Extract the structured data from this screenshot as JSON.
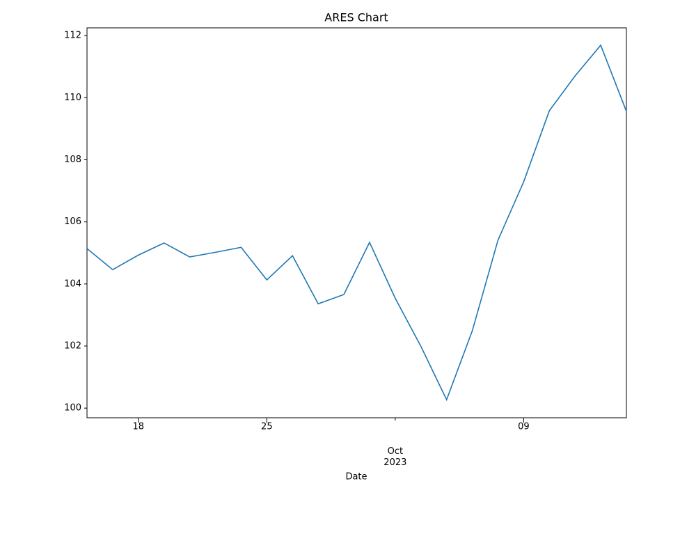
{
  "chart_data": {
    "type": "line",
    "title": "ARES Chart",
    "xlabel": "Date",
    "x": [
      "2023-09-14",
      "2023-09-15",
      "2023-09-18",
      "2023-09-19",
      "2023-09-20",
      "2023-09-21",
      "2023-09-22",
      "2023-09-25",
      "2023-09-26",
      "2023-09-27",
      "2023-09-28",
      "2023-09-29",
      "2023-10-02",
      "2023-10-03",
      "2023-10-04",
      "2023-10-05",
      "2023-10-06",
      "2023-10-09",
      "2023-10-10",
      "2023-10-11",
      "2023-10-12",
      "2023-10-13"
    ],
    "series": [
      {
        "color": "#1f77b4",
        "values": [
          105.14,
          104.46,
          104.93,
          105.32,
          104.87,
          105.02,
          105.18,
          104.13,
          104.91,
          103.36,
          103.66,
          105.34,
          103.54,
          101.99,
          100.27,
          102.49,
          105.41,
          107.29,
          109.58,
          110.7,
          111.69,
          109.56
        ]
      }
    ],
    "xticks": [
      {
        "value": "2023-09-18",
        "label": "18"
      },
      {
        "value": "2023-09-25",
        "label": "25"
      },
      {
        "value": "2023-10-02",
        "label": "Oct\n2023"
      },
      {
        "value": "2023-10-09",
        "label": "09"
      }
    ],
    "ylim": [
      99.69,
      112.25
    ],
    "yticks": [
      100,
      102,
      104,
      106,
      108,
      110,
      112
    ],
    "grid": false
  }
}
